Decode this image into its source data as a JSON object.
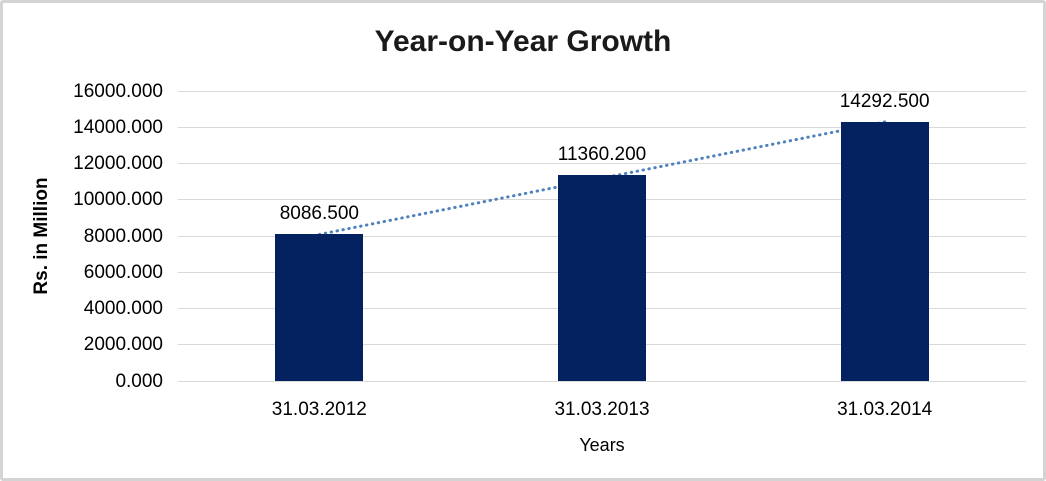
{
  "chart_data": {
    "type": "bar",
    "title": "Year-on-Year Growth",
    "xlabel": "Years",
    "ylabel": "Rs. in Million",
    "categories": [
      "31.03.2012",
      "31.03.2013",
      "31.03.2014"
    ],
    "values": [
      8086.5,
      11360.2,
      14292.5
    ],
    "data_labels": [
      "8086.500",
      "11360.200",
      "14292.500"
    ],
    "ylim": [
      0,
      16000
    ],
    "ytick_step": 2000,
    "ytick_labels": [
      "0.000",
      "2000.000",
      "4000.000",
      "6000.000",
      "8000.000",
      "10000.000",
      "12000.000",
      "14000.000",
      "16000.000"
    ],
    "grid": true,
    "legend_position": "none",
    "colors": {
      "bar_fill": "#04225f",
      "trendline": "#4f81bd",
      "gridline": "#d9d9d9",
      "text": "#000000",
      "frame_border": "#d4d4d4"
    },
    "trendline": {
      "type": "linear",
      "style": "dotted"
    }
  }
}
